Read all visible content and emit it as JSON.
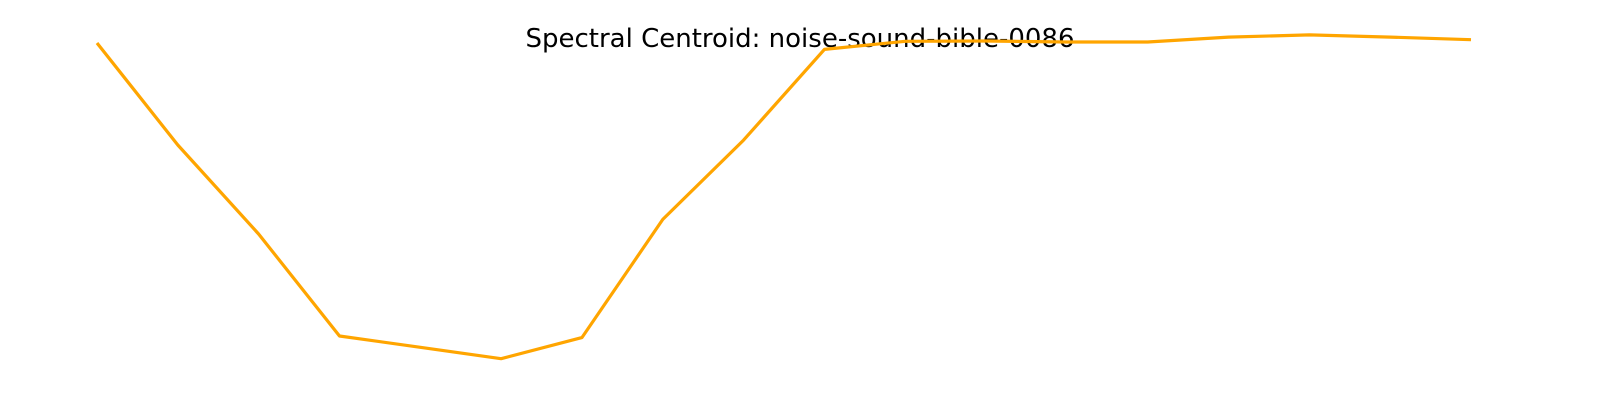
{
  "chart_data": {
    "type": "line",
    "title": "Spectral Centroid: noise-sound-bible-0086",
    "xlabel": "",
    "ylabel": "",
    "axes_visible": false,
    "grid": false,
    "line_color": "#ffa500",
    "x": [
      0,
      1,
      2,
      3,
      4,
      5,
      6,
      7,
      8,
      9,
      10,
      11,
      12,
      13,
      14,
      15,
      16,
      17
    ],
    "values": [
      0.96,
      0.645,
      0.37,
      0.055,
      0.02,
      -0.015,
      0.05,
      0.415,
      0.66,
      0.94,
      0.965,
      0.966,
      0.963,
      0.963,
      0.978,
      0.985,
      0.978,
      0.97
    ],
    "ylim": [
      -0.05,
      1.0
    ]
  }
}
